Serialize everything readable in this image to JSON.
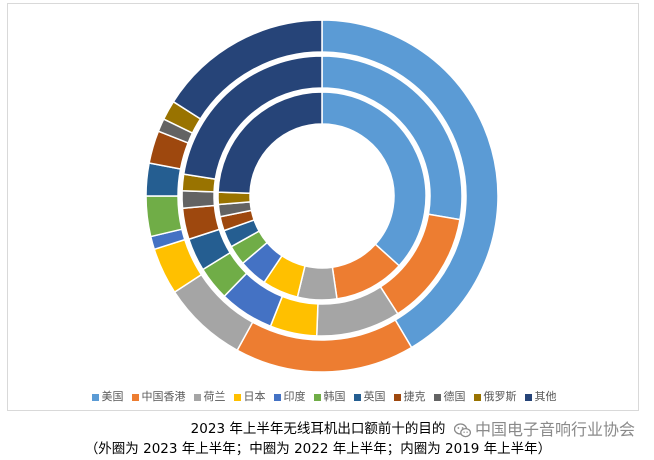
{
  "chart_data": {
    "type": "pie",
    "variant": "donut",
    "title": "2023 年上半年无线耳机出口额前十的目的",
    "categories": [
      "美国",
      "中国香港",
      "荷兰",
      "日本",
      "印度",
      "韩国",
      "英国",
      "捷克",
      "德国",
      "俄罗斯",
      "其他"
    ],
    "colors": [
      "#5B9BD5",
      "#ED7D31",
      "#A5A5A5",
      "#FFC000",
      "#4472C4",
      "#70AD47",
      "#255E91",
      "#9E480E",
      "#636363",
      "#997300",
      "#264478"
    ],
    "series": [
      {
        "name": "2023 年上半年",
        "values": [
          41.5,
          16.5,
          7.8,
          4.3,
          1.2,
          3.7,
          3.0,
          3.0,
          1.2,
          1.8,
          16.0
        ]
      },
      {
        "name": "2022 年上半年",
        "values": [
          27.7,
          13.2,
          9.7,
          5.4,
          6.3,
          3.9,
          3.8,
          3.6,
          2.0,
          1.9,
          22.5
        ]
      },
      {
        "name": "2019 年上半年",
        "values": [
          36.7,
          11.0,
          6.1,
          5.6,
          4.4,
          3.1,
          2.7,
          2.2,
          1.9,
          1.9,
          24.4
        ]
      }
    ],
    "legend": "bottom"
  },
  "caption": {
    "outer_prefix": "（外圈为 ",
    "middle_prefix": "；中圈为 ",
    "inner_prefix": "；内圈为 ",
    "suffix": "）"
  },
  "watermark": {
    "icon": "wechat-icon",
    "text": "中国电子音响行业协会"
  }
}
